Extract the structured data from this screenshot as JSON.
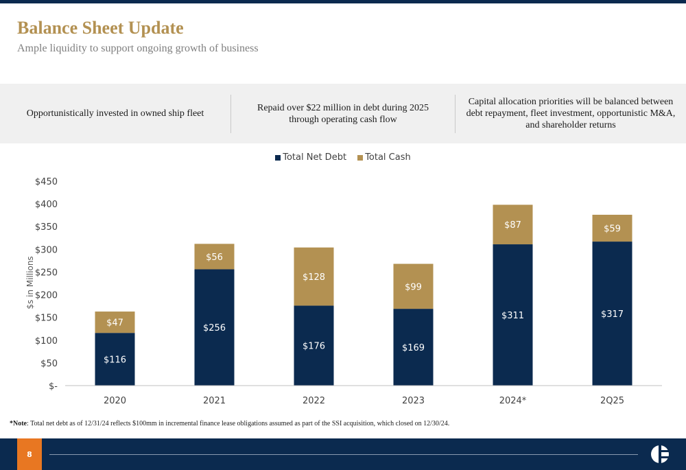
{
  "header": {
    "title": "Balance Sheet Update",
    "subtitle": "Ample liquidity to support ongoing growth of business"
  },
  "highlights": [
    "Opportunistically invested in owned ship fleet",
    "Repaid over $22 million in debt during 2025 through operating cash flow",
    "Capital allocation priorities will be balanced between debt repayment, fleet investment, opportunistic M&A, and shareholder returns"
  ],
  "chart_data": {
    "type": "bar",
    "stacked": true,
    "categories": [
      "2020",
      "2021",
      "2022",
      "2023",
      "2024*",
      "2Q25"
    ],
    "series": [
      {
        "name": "Total Net Debt",
        "color": "#0b2a4f",
        "values": [
          116,
          256,
          176,
          169,
          311,
          317
        ],
        "labels": [
          "$116",
          "$256",
          "$176",
          "$169",
          "$311",
          "$317"
        ]
      },
      {
        "name": "Total Cash",
        "color": "#b39152",
        "values": [
          47,
          56,
          128,
          99,
          87,
          59
        ],
        "labels": [
          "$47",
          "$56",
          "$128",
          "$99",
          "$87",
          "$59"
        ]
      }
    ],
    "ylabel": "$s in Millions",
    "ylim": [
      0,
      450
    ],
    "yticks": [
      0,
      50,
      100,
      150,
      200,
      250,
      300,
      350,
      400,
      450
    ],
    "ytick_labels": [
      "$-",
      "$50",
      "$100",
      "$150",
      "$200",
      "$250",
      "$300",
      "$350",
      "$400",
      "$450"
    ],
    "legend_position": "top-center",
    "grid": false
  },
  "note": {
    "label": "*Note",
    "text": ": Total net debt as of 12/31/24 reflects $100mm in incremental finance lease obligations assumed as part of the SSI acquisition, which closed on 12/30/24."
  },
  "footer": {
    "page_number": "8",
    "logo_icon": "company-logo-icon"
  }
}
